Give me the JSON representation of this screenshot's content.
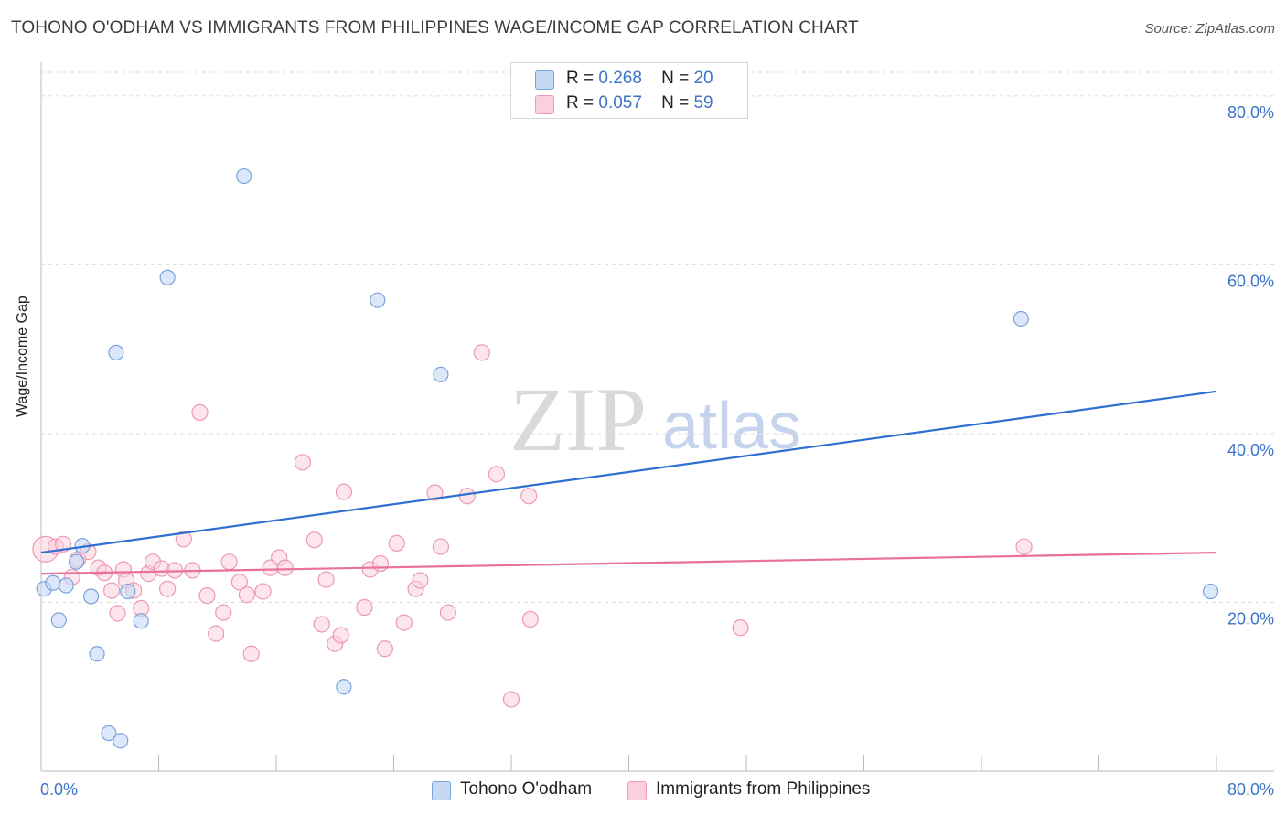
{
  "title": "TOHONO O'ODHAM VS IMMIGRANTS FROM PHILIPPINES WAGE/INCOME GAP CORRELATION CHART",
  "source": "Source: ZipAtlas.com",
  "watermark": {
    "zip": "ZIP",
    "atlas": "atlas"
  },
  "legend": {
    "rows": [
      {
        "r_label": "R =",
        "r_value": "0.268",
        "n_label": "N =",
        "n_value": "20"
      },
      {
        "r_label": "R =",
        "r_value": "0.057",
        "n_label": "N =",
        "n_value": "59"
      }
    ]
  },
  "colors": {
    "blue_fill": "#c5d9f5",
    "blue_stroke": "#7aa3dc",
    "blue_line": "#2f6fd1",
    "pink_fill": "#fbd0dc",
    "pink_stroke": "#ec9ab3",
    "pink_line": "#e8709a",
    "tick_label": "#3b74c9",
    "grid": "#dcdcdc"
  },
  "chart_data": {
    "type": "scatter",
    "ylabel": "Wage/Income Gap",
    "xlim": [
      0,
      80
    ],
    "ylim": [
      0,
      84
    ],
    "x_tick_labels": [
      "0.0%",
      "80.0%"
    ],
    "y_ticks": [
      20,
      40,
      60,
      80
    ],
    "y_tick_labels": [
      "20.0%",
      "40.0%",
      "60.0%",
      "80.0%"
    ],
    "grid": "horizontal dashed",
    "series": [
      {
        "name": "Tohono O'odham",
        "color": "#7aa3dc",
        "points": [
          [
            0.2,
            21.6
          ],
          [
            0.8,
            22.3
          ],
          [
            1.2,
            17.9
          ],
          [
            1.7,
            22.0
          ],
          [
            2.4,
            24.8
          ],
          [
            2.8,
            26.7
          ],
          [
            3.4,
            20.7
          ],
          [
            3.8,
            13.9
          ],
          [
            4.6,
            4.5
          ],
          [
            5.1,
            49.6
          ],
          [
            5.4,
            3.6
          ],
          [
            5.9,
            21.3
          ],
          [
            6.8,
            17.8
          ],
          [
            8.6,
            58.5
          ],
          [
            13.8,
            70.5
          ],
          [
            20.6,
            10.0
          ],
          [
            22.9,
            55.8
          ],
          [
            27.2,
            47.0
          ],
          [
            66.7,
            53.6
          ],
          [
            79.6,
            21.3
          ]
        ],
        "trend": [
          [
            0,
            25.9
          ],
          [
            80,
            45.0
          ]
        ]
      },
      {
        "name": "Immigrants from Philippines",
        "color": "#ec9ab3",
        "points": [
          [
            0.3,
            26.3
          ],
          [
            1.0,
            26.6
          ],
          [
            1.5,
            26.9
          ],
          [
            2.1,
            23.0
          ],
          [
            2.5,
            25.1
          ],
          [
            3.2,
            26.0
          ],
          [
            3.9,
            24.1
          ],
          [
            4.3,
            23.5
          ],
          [
            4.8,
            21.4
          ],
          [
            5.2,
            18.7
          ],
          [
            5.6,
            23.9
          ],
          [
            5.8,
            22.6
          ],
          [
            6.3,
            21.4
          ],
          [
            6.8,
            19.3
          ],
          [
            7.3,
            23.4
          ],
          [
            7.6,
            24.8
          ],
          [
            8.2,
            24.0
          ],
          [
            8.6,
            21.6
          ],
          [
            9.1,
            23.8
          ],
          [
            9.7,
            27.5
          ],
          [
            10.3,
            23.8
          ],
          [
            10.8,
            42.5
          ],
          [
            11.3,
            20.8
          ],
          [
            11.9,
            16.3
          ],
          [
            12.4,
            18.8
          ],
          [
            12.8,
            24.8
          ],
          [
            13.5,
            22.4
          ],
          [
            14.0,
            20.9
          ],
          [
            14.3,
            13.9
          ],
          [
            15.1,
            21.3
          ],
          [
            15.6,
            24.1
          ],
          [
            16.2,
            25.3
          ],
          [
            16.6,
            24.1
          ],
          [
            17.8,
            36.6
          ],
          [
            18.6,
            27.4
          ],
          [
            19.1,
            17.4
          ],
          [
            19.4,
            22.7
          ],
          [
            20.0,
            15.1
          ],
          [
            20.4,
            16.1
          ],
          [
            20.6,
            33.1
          ],
          [
            22.0,
            19.4
          ],
          [
            22.4,
            23.9
          ],
          [
            23.1,
            24.6
          ],
          [
            23.4,
            14.5
          ],
          [
            24.2,
            27.0
          ],
          [
            24.7,
            17.6
          ],
          [
            25.5,
            21.6
          ],
          [
            25.8,
            22.6
          ],
          [
            26.8,
            33.0
          ],
          [
            27.2,
            26.6
          ],
          [
            27.7,
            18.8
          ],
          [
            29.0,
            32.6
          ],
          [
            30.0,
            49.6
          ],
          [
            31.0,
            35.2
          ],
          [
            32.0,
            8.5
          ],
          [
            33.2,
            32.6
          ],
          [
            33.3,
            18.0
          ],
          [
            47.6,
            17.0
          ],
          [
            66.9,
            26.6
          ]
        ],
        "trend": [
          [
            0,
            23.4
          ],
          [
            80,
            25.9
          ]
        ]
      }
    ]
  },
  "bottom_legend": [
    "Tohono O'odham",
    "Immigrants from Philippines"
  ]
}
